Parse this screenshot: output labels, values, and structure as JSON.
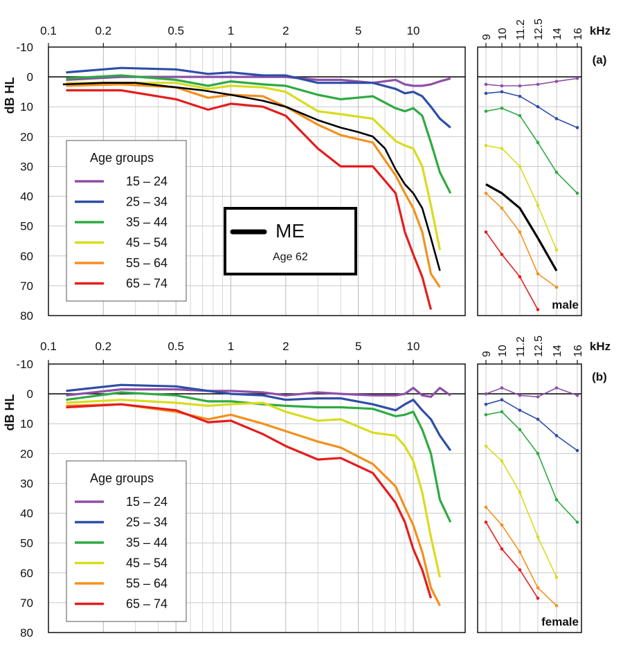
{
  "chart_data": [
    {
      "type": "line",
      "panel_label": "(a)",
      "sex_label": "male",
      "ylabel": "dB HL",
      "x_unit": "kHz",
      "ylim": [
        -10,
        80
      ],
      "y_ticks": [
        -10,
        0,
        10,
        20,
        30,
        40,
        50,
        60,
        70,
        80
      ],
      "x_ticks": [
        "0.1",
        "0.2",
        "0.5",
        "1",
        "2",
        "5",
        "10"
      ],
      "hf_ticks": [
        "9",
        "10",
        "11.2",
        "12.5",
        "14",
        "16"
      ],
      "legend_title": "Age groups",
      "series": [
        {
          "name": "15 – 24",
          "color": "#8e4fa8",
          "x": [
            0.125,
            0.25,
            0.5,
            0.75,
            1,
            1.5,
            2,
            3,
            4,
            6,
            8,
            9,
            10,
            11.2,
            12.5,
            14,
            16
          ],
          "y": [
            1,
            0,
            0,
            0,
            0,
            0,
            0,
            1,
            1,
            2,
            1,
            2.5,
            3,
            3,
            2.5,
            1.5,
            0.5
          ]
        },
        {
          "name": "25 – 34",
          "color": "#2e4ea6",
          "x": [
            0.125,
            0.25,
            0.5,
            0.75,
            1,
            1.5,
            2,
            3,
            4,
            6,
            8,
            9,
            10,
            11.2,
            12.5,
            14,
            16
          ],
          "y": [
            -1.5,
            -3,
            -2.5,
            -1,
            -1.5,
            -0.5,
            -0.5,
            2,
            2,
            2,
            4,
            5.5,
            5,
            6.5,
            10,
            14,
            17
          ]
        },
        {
          "name": "35 – 44",
          "color": "#2eaa42",
          "x": [
            0.125,
            0.25,
            0.5,
            0.75,
            1,
            1.5,
            2,
            3,
            4,
            6,
            8,
            9,
            10,
            11.2,
            12.5,
            14,
            16
          ],
          "y": [
            0.5,
            -0.5,
            1,
            3,
            1.5,
            2.5,
            3,
            6,
            7.5,
            6.5,
            10.5,
            11.5,
            10.5,
            13,
            22,
            32,
            39
          ]
        },
        {
          "name": "45 – 54",
          "color": "#d8dc1e",
          "x": [
            0.125,
            0.25,
            0.5,
            0.75,
            1,
            1.5,
            2,
            3,
            4,
            6,
            8,
            9,
            10,
            11.2,
            12.5,
            14
          ],
          "y": [
            2,
            2,
            2,
            4,
            3,
            3.5,
            5,
            11.5,
            12.5,
            14,
            21.5,
            23,
            24,
            30,
            43,
            58
          ]
        },
        {
          "name": "55 – 64",
          "color": "#f3901d",
          "x": [
            0.125,
            0.25,
            0.5,
            0.75,
            1,
            1.5,
            2,
            3,
            4,
            6,
            8,
            9,
            10,
            11.2,
            12.5,
            14
          ],
          "y": [
            3,
            2.5,
            3.5,
            7,
            6,
            6.5,
            10,
            16,
            19.5,
            22,
            33,
            39,
            44,
            52,
            66,
            70.5
          ]
        },
        {
          "name": "65 – 74",
          "color": "#e41d1d",
          "x": [
            0.125,
            0.25,
            0.5,
            0.75,
            1,
            1.5,
            2,
            3,
            4,
            6,
            8,
            9,
            10,
            11.2,
            12.5
          ],
          "y": [
            4.5,
            4.5,
            7.5,
            11,
            9,
            10,
            13,
            24,
            30,
            30,
            39,
            52,
            59.5,
            67,
            78
          ]
        },
        {
          "name": "ME",
          "color": "#000000",
          "x": [
            0.12,
            0.2,
            0.3,
            0.5,
            0.7,
            1,
            1.5,
            2,
            3,
            4,
            5,
            6,
            7,
            8,
            9,
            10,
            11.2,
            12.5,
            14
          ],
          "y": [
            2.5,
            2,
            2,
            3.5,
            4.5,
            6,
            8,
            10,
            14.5,
            17,
            18.5,
            20,
            24,
            31,
            36,
            39,
            44,
            54,
            65
          ]
        }
      ]
    },
    {
      "type": "line",
      "panel_label": "(b)",
      "sex_label": "female",
      "ylabel": "dB HL",
      "x_unit": "kHz",
      "ylim": [
        -10,
        80
      ],
      "y_ticks": [
        -10,
        0,
        10,
        20,
        30,
        40,
        50,
        60,
        70,
        80
      ],
      "x_ticks": [
        "0.1",
        "0.2",
        "0.5",
        "1",
        "2",
        "5",
        "10"
      ],
      "hf_ticks": [
        "9",
        "10",
        "11.2",
        "12.5",
        "14",
        "16"
      ],
      "legend_title": "Age groups",
      "series": [
        {
          "name": "15 – 24",
          "color": "#8e4fa8",
          "x": [
            0.125,
            0.25,
            0.5,
            0.75,
            1,
            1.5,
            2,
            3,
            4,
            6,
            8,
            9,
            10,
            11.2,
            12.5,
            14,
            16
          ],
          "y": [
            0.5,
            -1.5,
            -1.5,
            -1,
            -1,
            -0.5,
            0.5,
            -0.5,
            0,
            0.5,
            0.5,
            0,
            -2,
            0.5,
            1,
            -2,
            0.5
          ]
        },
        {
          "name": "25 – 34",
          "color": "#2e4ea6",
          "x": [
            0.125,
            0.25,
            0.5,
            0.75,
            1,
            1.5,
            2,
            3,
            4,
            6,
            8,
            9,
            10,
            11.2,
            12.5,
            14,
            16
          ],
          "y": [
            -1,
            -3,
            -2.5,
            -1,
            0,
            0.5,
            2,
            1.5,
            1.5,
            3.5,
            5.5,
            3.5,
            2,
            5.5,
            8.5,
            14,
            19
          ]
        },
        {
          "name": "35 – 44",
          "color": "#2eaa42",
          "x": [
            0.125,
            0.25,
            0.5,
            0.75,
            1,
            1.5,
            2,
            3,
            4,
            6,
            8,
            9,
            10,
            11.2,
            12.5,
            14,
            16
          ],
          "y": [
            2,
            -0.5,
            0.5,
            2.5,
            2.5,
            3.5,
            4,
            4.5,
            4.5,
            5,
            7.5,
            7,
            6,
            12,
            20,
            35.5,
            43
          ]
        },
        {
          "name": "45 – 54",
          "color": "#d8dc1e",
          "x": [
            0.125,
            0.25,
            0.5,
            0.75,
            1,
            1.5,
            2,
            3,
            4,
            6,
            8,
            9,
            10,
            11.2,
            12.5,
            14
          ],
          "y": [
            3,
            2,
            3,
            4,
            3.5,
            3,
            6,
            9,
            8.5,
            13,
            14,
            17.5,
            22.5,
            33,
            48,
            61.5
          ]
        },
        {
          "name": "55 – 64",
          "color": "#f3901d",
          "x": [
            0.125,
            0.25,
            0.5,
            0.75,
            1,
            1.5,
            2,
            3,
            4,
            6,
            8,
            9,
            10,
            11.2,
            12.5,
            14
          ],
          "y": [
            4,
            3.5,
            6,
            8.5,
            7,
            10,
            12.5,
            16,
            18,
            23.5,
            31,
            38,
            44,
            53,
            65,
            71
          ]
        },
        {
          "name": "65 – 74",
          "color": "#e41d1d",
          "x": [
            0.125,
            0.25,
            0.5,
            0.75,
            1,
            1.5,
            2,
            3,
            4,
            6,
            8,
            9,
            10,
            11.2,
            12.5
          ],
          "y": [
            4.5,
            3.5,
            5.5,
            9.5,
            9,
            13.5,
            17.5,
            22,
            21.5,
            26.5,
            36.5,
            43,
            52,
            59,
            68.5
          ]
        }
      ]
    }
  ],
  "annotation": {
    "title": "ME",
    "subtitle": "Age 62"
  }
}
